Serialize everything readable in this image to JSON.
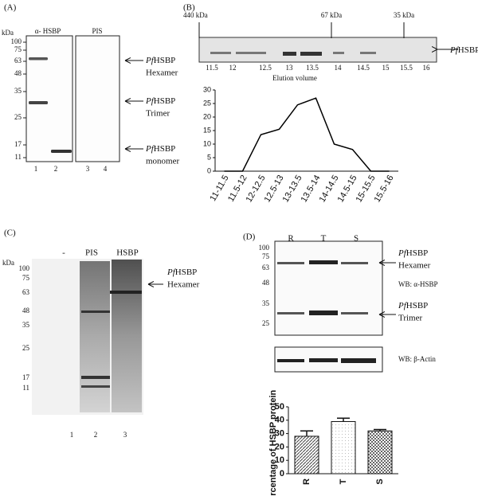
{
  "panel_a": {
    "label": "(A)",
    "unit": "kDa",
    "markers": [
      100,
      75,
      63,
      48,
      35,
      25,
      17,
      11
    ],
    "headers": [
      "α- HSBP",
      "PIS"
    ],
    "lanes": [
      1,
      2,
      3,
      4
    ],
    "annotations": [
      {
        "prefix": "Pf",
        "name": "HSBP",
        "form": "Hexamer"
      },
      {
        "prefix": "Pf",
        "name": "HSBP",
        "form": "Trimer"
      },
      {
        "prefix": "Pf",
        "name": "HSBP",
        "form": "monomer"
      }
    ]
  },
  "panel_b": {
    "label": "(B)",
    "sizes": [
      "440 kDa",
      "67 kDa",
      "35 kDa"
    ],
    "annotation": {
      "prefix": "Pf",
      "name": "HSBP"
    },
    "elution_volumes": [
      11.5,
      12,
      12.5,
      13,
      13.5,
      14,
      14.5,
      15,
      15.5,
      16
    ],
    "elution_label": "Elution volume"
  },
  "panel_c": {
    "label": "(C)",
    "unit": "kDa",
    "markers": [
      100,
      75,
      63,
      48,
      35,
      25,
      17,
      11
    ],
    "headers": [
      "-",
      "PIS",
      "HSBP"
    ],
    "lanes": [
      1,
      2,
      3
    ],
    "annotation": {
      "prefix": "Pf",
      "name": "HSBP",
      "form": "Hexamer"
    }
  },
  "panel_d": {
    "label": "(D)",
    "markers": [
      100,
      75,
      63,
      48,
      35,
      25
    ],
    "lanes": [
      "R",
      "T",
      "S"
    ],
    "annotations": [
      {
        "prefix": "Pf",
        "name": "HSBP",
        "form": "Hexamer"
      },
      {
        "prefix": "Pf",
        "name": "HSBP",
        "form": "Trimer"
      }
    ],
    "blot_labels": [
      "WB: α-HSBP",
      "WB: β-Actin"
    ]
  },
  "chart_data": [
    {
      "type": "line",
      "color": "#000000",
      "categories": [
        "11-11.5",
        "11.5-12",
        "12-12.5",
        "12.5-13",
        "13-13.5",
        "13.5-14",
        "14-14.5",
        "14.5-15",
        "15-15.5",
        "15.5-16"
      ],
      "values": [
        0,
        0,
        13.5,
        15.5,
        24.5,
        27,
        10,
        8,
        0,
        0
      ],
      "ylim": [
        0,
        30
      ],
      "yticks": [
        0,
        5,
        10,
        15,
        20,
        25,
        30
      ]
    },
    {
      "type": "bar",
      "y_label": "Percentage of HSBP protein",
      "categories": [
        "R",
        "T",
        "S"
      ],
      "values": [
        28,
        39,
        32
      ],
      "errors": [
        4,
        2.5,
        1
      ],
      "colors": [
        "#444444",
        "#bbbbbb",
        "#666666"
      ],
      "ylim": [
        0,
        50
      ],
      "yticks": [
        0,
        10,
        20,
        30,
        40,
        50
      ]
    }
  ]
}
